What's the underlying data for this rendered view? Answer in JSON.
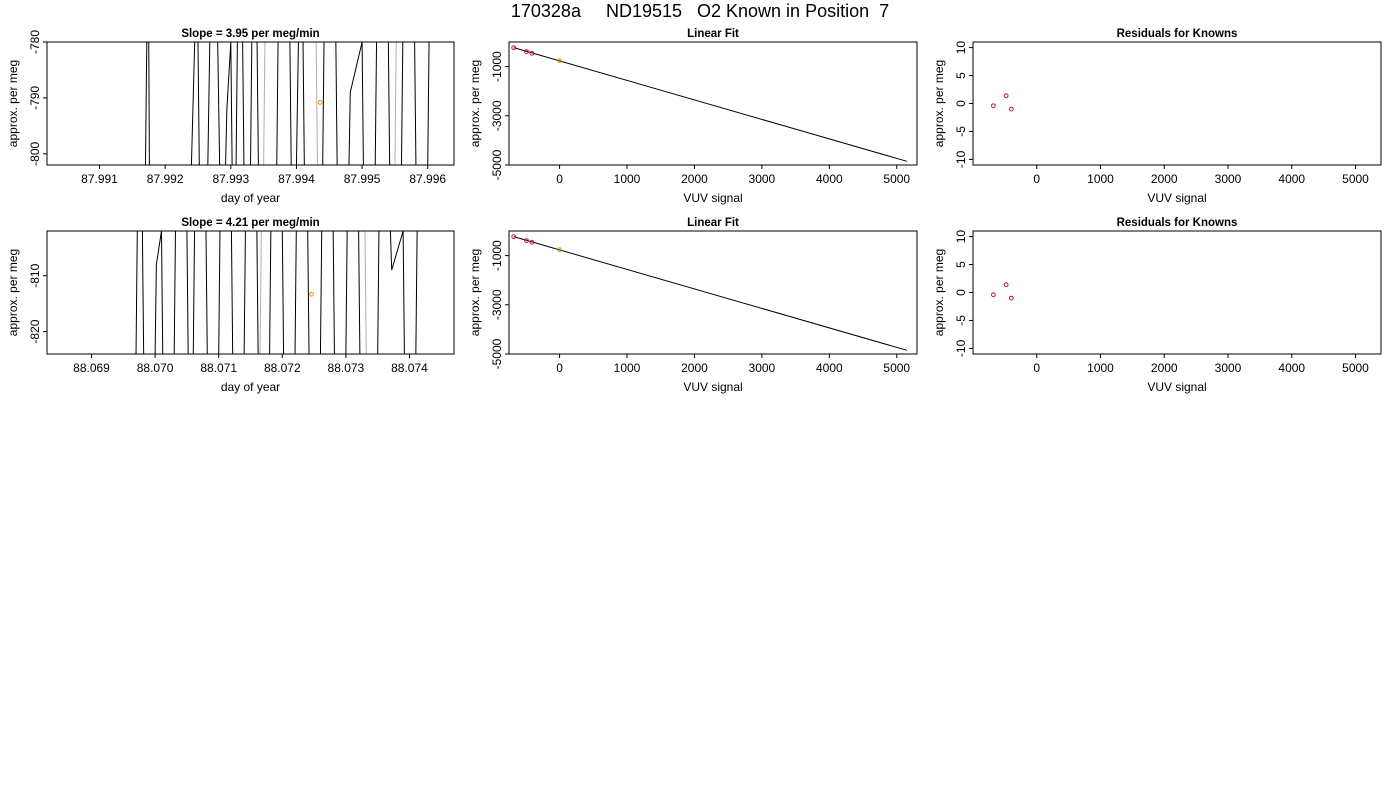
{
  "figure_title": "170328a     ND19515   O2 Known in Position  7",
  "colors": {
    "trace": "#000000",
    "trace_light": "#b0b0b0",
    "known": "#c8102e",
    "sample": "#ff8c00",
    "fit": "#000000"
  },
  "chart_data": [
    {
      "type": "line",
      "panel": "top-left",
      "title": "Slope =  3.95  per meg/min",
      "xlabel": "day of year",
      "ylabel": "approx. per meg",
      "xlim": [
        87.9902,
        87.9964
      ],
      "ylim": [
        -802,
        -780
      ],
      "x_ticks": [
        87.991,
        87.992,
        87.993,
        87.994,
        87.995,
        87.996
      ],
      "x_tick_labels": [
        "87.991",
        "87.992",
        "87.993",
        "87.994",
        "87.995",
        "87.996"
      ],
      "y_ticks": [
        -800,
        -790,
        -780
      ],
      "y_tick_labels": [
        "-800",
        "-790",
        "-780"
      ],
      "series": [
        {
          "style": "dark",
          "x": [
            87.9917,
            87.99172,
            87.99175,
            87.99176,
            87.9924,
            87.99245,
            87.9925,
            87.99252,
            87.99265,
            87.99268,
            87.9928,
            87.99283,
            87.99292,
            87.99294,
            87.993,
            87.99302,
            87.99308,
            87.9931,
            87.99318,
            87.9932,
            87.9933,
            87.99332,
            87.9934,
            87.99342,
            87.9937,
            87.99372,
            87.9939,
            87.99392,
            87.994,
            87.99403,
            87.9941,
            87.99412,
            87.9944,
            87.99442,
            87.9946,
            87.99462,
            87.9948,
            87.99482,
            87.995,
            87.99502,
            87.9952,
            87.99522,
            87.9954,
            87.99542,
            87.9956,
            87.99562,
            87.9958,
            87.99582,
            87.996,
            87.99602
          ],
          "y": [
            -802,
            -780,
            -780,
            -802,
            -802,
            -780,
            -780,
            -802,
            -802,
            -780,
            -780,
            -802,
            -802,
            -792,
            -780,
            -802,
            -802,
            -780,
            -780,
            -802,
            -802,
            -780,
            -780,
            -802,
            -802,
            -780,
            -780,
            -802,
            -802,
            -780,
            -780,
            -802,
            -802,
            -780,
            -780,
            -802,
            -802,
            -789,
            -780,
            -802,
            -802,
            -780,
            -780,
            -802,
            -802,
            -780,
            -780,
            -802,
            -802,
            -780
          ]
        },
        {
          "style": "light",
          "x": [
            87.9935,
            87.99352,
            87.9943,
            87.99432,
            87.9955,
            87.99552
          ],
          "y": [
            -802,
            -780,
            -780,
            -802,
            -802,
            -780
          ]
        }
      ],
      "samples": [
        {
          "x": 87.99436,
          "y": -790.8
        }
      ]
    },
    {
      "type": "scatter",
      "panel": "top-middle",
      "title": "Linear Fit",
      "xlabel": "VUV signal",
      "ylabel": "approx. per meg",
      "xlim": [
        -750,
        5300
      ],
      "ylim": [
        -5000,
        0
      ],
      "x_ticks": [
        0,
        1000,
        2000,
        3000,
        4000,
        5000
      ],
      "x_tick_labels": [
        "0",
        "1000",
        "2000",
        "3000",
        "4000",
        "5000"
      ],
      "y_ticks": [
        -5000,
        -3000,
        -1000
      ],
      "y_tick_labels": [
        "-5000",
        "-3000",
        "-1000"
      ],
      "fit_line": {
        "x": [
          -680,
          5150
        ],
        "y": [
          -230,
          -4850
        ]
      },
      "knowns": {
        "x": [
          -680,
          -490,
          -410
        ],
        "y": [
          -230,
          -390,
          -460
        ]
      },
      "samples": [
        {
          "x": 0,
          "y": -760
        }
      ]
    },
    {
      "type": "scatter",
      "panel": "top-right",
      "title": "Residuals for Knowns",
      "xlabel": "VUV signal",
      "ylabel": "approx. per meg",
      "xlim": [
        -1000,
        5400
      ],
      "ylim": [
        -11,
        11
      ],
      "x_ticks": [
        0,
        1000,
        2000,
        3000,
        4000,
        5000
      ],
      "x_tick_labels": [
        "0",
        "1000",
        "2000",
        "3000",
        "4000",
        "5000"
      ],
      "y_ticks": [
        -10,
        -5,
        0,
        5,
        10
      ],
      "y_tick_labels": [
        "-10",
        "-5",
        "0",
        "5",
        "10"
      ],
      "points": {
        "x": [
          -680,
          -480,
          -400
        ],
        "y": [
          -0.4,
          1.4,
          -1.0
        ]
      }
    },
    {
      "type": "line",
      "panel": "bottom-left",
      "title": "Slope =  4.21  per meg/min",
      "xlabel": "day of year",
      "ylabel": "approx. per meg",
      "xlim": [
        88.0683,
        88.0747
      ],
      "ylim": [
        -824,
        -802
      ],
      "x_ticks": [
        88.069,
        88.07,
        88.071,
        88.072,
        88.073,
        88.074
      ],
      "x_tick_labels": [
        "88.069",
        "88.070",
        "88.071",
        "88.072",
        "88.073",
        "88.074"
      ],
      "y_ticks": [
        -820,
        -810
      ],
      "y_tick_labels": [
        "-820",
        "-810"
      ],
      "series": [
        {
          "style": "dark",
          "x": [
            88.0697,
            88.06972,
            88.0698,
            88.06982,
            88.07,
            88.07002,
            88.0701,
            88.07012,
            88.0703,
            88.07032,
            88.0705,
            88.07052,
            88.0706,
            88.07062,
            88.0708,
            88.07082,
            88.071,
            88.07102,
            88.0712,
            88.07122,
            88.0714,
            88.07142,
            88.0716,
            88.07162,
            88.0718,
            88.07182,
            88.072,
            88.07202,
            88.0722,
            88.07222,
            88.0724,
            88.07242,
            88.0726,
            88.07262,
            88.0728,
            88.07282,
            88.073,
            88.07302,
            88.0732,
            88.07322,
            88.0735,
            88.07352,
            88.0737,
            88.07372,
            88.0739,
            88.07392,
            88.0741,
            88.07412
          ],
          "y": [
            -824,
            -802,
            -802,
            -824,
            -824,
            -808,
            -802,
            -824,
            -824,
            -802,
            -802,
            -824,
            -824,
            -802,
            -802,
            -824,
            -824,
            -802,
            -802,
            -824,
            -824,
            -802,
            -802,
            -824,
            -824,
            -802,
            -802,
            -824,
            -824,
            -802,
            -802,
            -824,
            -824,
            -802,
            -802,
            -824,
            -824,
            -802,
            -802,
            -824,
            -824,
            -802,
            -802,
            -809,
            -802,
            -824,
            -824,
            -802
          ]
        },
        {
          "style": "light",
          "x": [
            88.07165,
            88.07167,
            88.0733,
            88.07332
          ],
          "y": [
            -824,
            -802,
            -802,
            -824
          ]
        }
      ],
      "samples": [
        {
          "x": 88.07246,
          "y": -813.3
        }
      ]
    },
    {
      "type": "scatter",
      "panel": "bottom-middle",
      "title": "Linear Fit",
      "xlabel": "VUV signal",
      "ylabel": "approx. per meg",
      "xlim": [
        -750,
        5300
      ],
      "ylim": [
        -5000,
        0
      ],
      "x_ticks": [
        0,
        1000,
        2000,
        3000,
        4000,
        5000
      ],
      "x_tick_labels": [
        "0",
        "1000",
        "2000",
        "3000",
        "4000",
        "5000"
      ],
      "y_ticks": [
        -5000,
        -3000,
        -1000
      ],
      "y_tick_labels": [
        "-5000",
        "-3000",
        "-1000"
      ],
      "fit_line": {
        "x": [
          -680,
          5150
        ],
        "y": [
          -230,
          -4850
        ]
      },
      "knowns": {
        "x": [
          -680,
          -490,
          -410
        ],
        "y": [
          -230,
          -390,
          -460
        ]
      },
      "samples": [
        {
          "x": 0,
          "y": -760
        }
      ]
    },
    {
      "type": "scatter",
      "panel": "bottom-right",
      "title": "Residuals for Knowns",
      "xlabel": "VUV signal",
      "ylabel": "approx. per meg",
      "xlim": [
        -1000,
        5400
      ],
      "ylim": [
        -11,
        11
      ],
      "x_ticks": [
        0,
        1000,
        2000,
        3000,
        4000,
        5000
      ],
      "x_tick_labels": [
        "0",
        "1000",
        "2000",
        "3000",
        "4000",
        "5000"
      ],
      "y_ticks": [
        -10,
        -5,
        0,
        5,
        10
      ],
      "y_tick_labels": [
        "-10",
        "-5",
        "0",
        "5",
        "10"
      ],
      "points": {
        "x": [
          -680,
          -480,
          -400
        ],
        "y": [
          -0.4,
          1.4,
          -1.0
        ]
      }
    }
  ]
}
